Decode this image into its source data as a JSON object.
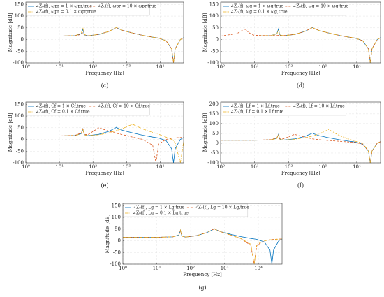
{
  "chart_data": [
    {
      "type": "line",
      "caption": "(c)",
      "xlabel": "Frequency [Hz]",
      "ylabel": "Magnitude [dB]",
      "xscale": "log",
      "grid": true,
      "x": [
        1,
        3,
        5,
        8,
        10,
        30,
        45,
        50,
        55,
        70,
        150,
        300,
        450,
        500,
        550,
        800,
        1500,
        3000,
        6000,
        7500,
        9000,
        15000,
        22000,
        25000,
        28000,
        40000,
        50000
      ],
      "xlim": [
        1,
        50000
      ],
      "xticks": [
        {
          "value": 1,
          "label": "10⁰"
        },
        {
          "value": 10,
          "label": "10¹"
        },
        {
          "value": 100,
          "label": "10²"
        },
        {
          "value": 1000,
          "label": "10³"
        },
        {
          "value": 10000,
          "label": "10⁴"
        }
      ],
      "ylim": [
        -100,
        160
      ],
      "yticks": [
        -100,
        -50,
        0,
        50,
        100,
        150
      ],
      "series": [
        {
          "name": "∠Z₀(f), ωpr = 1 × ωpr,true",
          "color": "#0072bd",
          "dash": "",
          "values": [
            15,
            15,
            15,
            15,
            15,
            17,
            25,
            45,
            20,
            16,
            22,
            35,
            48,
            52,
            48,
            38,
            28,
            18,
            10,
            8,
            6,
            -5,
            -40,
            -100,
            -40,
            0,
            8
          ]
        },
        {
          "name": "∠Z₀(f), ωpr = 10 × ωpr,true",
          "color": "#d95319",
          "dash": "3 2",
          "values": [
            15,
            15,
            15,
            15,
            15,
            17,
            22,
            30,
            20,
            16,
            22,
            35,
            48,
            52,
            48,
            38,
            28,
            18,
            10,
            8,
            6,
            -5,
            -40,
            -100,
            -40,
            0,
            8
          ]
        },
        {
          "name": "∠Z₀(f), ωpr = 0.1 × ωpr,true",
          "color": "#edb120",
          "dash": "4 1.5 1 1.5",
          "values": [
            15,
            15,
            15,
            15,
            15,
            17,
            28,
            50,
            22,
            16,
            22,
            35,
            48,
            52,
            48,
            38,
            28,
            18,
            10,
            8,
            6,
            -5,
            -40,
            -100,
            -40,
            0,
            8
          ]
        }
      ]
    },
    {
      "type": "line",
      "caption": "(d)",
      "xlabel": "Frequency [Hz]",
      "ylabel": "Magnitude [dB]",
      "xscale": "log",
      "grid": true,
      "x": [
        1,
        3,
        5,
        8,
        10,
        30,
        45,
        50,
        55,
        70,
        150,
        300,
        450,
        500,
        550,
        800,
        1500,
        3000,
        6000,
        7500,
        9000,
        15000,
        22000,
        25000,
        28000,
        40000,
        50000
      ],
      "xlim": [
        1,
        50000
      ],
      "xticks": [
        {
          "value": 1,
          "label": "10⁰"
        },
        {
          "value": 10,
          "label": "10¹"
        },
        {
          "value": 100,
          "label": "10²"
        },
        {
          "value": 1000,
          "label": "10³"
        },
        {
          "value": 10000,
          "label": "10⁴"
        }
      ],
      "ylim": [
        -100,
        160
      ],
      "yticks": [
        -100,
        -50,
        0,
        50,
        100,
        150
      ],
      "series": [
        {
          "name": "∠Z₀(f), ωg = 1 × ωg,true",
          "color": "#0072bd",
          "dash": "",
          "values": [
            15,
            15,
            15,
            15,
            15,
            17,
            25,
            45,
            20,
            16,
            22,
            35,
            48,
            52,
            48,
            38,
            28,
            18,
            10,
            8,
            6,
            -5,
            -40,
            -100,
            -40,
            0,
            8
          ]
        },
        {
          "name": "∠Z₀(f), ωg = 10 × ωg,true",
          "color": "#d95319",
          "dash": "3 2",
          "values": [
            15,
            25,
            45,
            22,
            18,
            17,
            17,
            18,
            17,
            17,
            22,
            35,
            48,
            52,
            48,
            38,
            28,
            18,
            10,
            8,
            6,
            -5,
            -40,
            -100,
            -40,
            0,
            8
          ]
        },
        {
          "name": "∠Z₀(f), ωg = 0.1 × ωg,true",
          "color": "#edb120",
          "dash": "4 1.5 1 1.5",
          "values": [
            15,
            15,
            15,
            15,
            15,
            17,
            24,
            40,
            20,
            16,
            22,
            35,
            48,
            52,
            48,
            38,
            28,
            18,
            10,
            8,
            6,
            -5,
            -40,
            -100,
            -40,
            0,
            8
          ]
        }
      ]
    },
    {
      "type": "line",
      "caption": "(e)",
      "xlabel": "Frequency [Hz]",
      "ylabel": "Magnitude [dB]",
      "xscale": "log",
      "grid": true,
      "x": [
        1,
        3,
        5,
        8,
        10,
        30,
        45,
        50,
        55,
        70,
        150,
        300,
        450,
        500,
        550,
        800,
        1500,
        3000,
        6000,
        7500,
        9000,
        15000,
        22000,
        25000,
        28000,
        40000,
        50000
      ],
      "xlim": [
        1,
        50000
      ],
      "xticks": [
        {
          "value": 1,
          "label": "10⁰"
        },
        {
          "value": 10,
          "label": "10¹"
        },
        {
          "value": 100,
          "label": "10²"
        },
        {
          "value": 1000,
          "label": "10³"
        },
        {
          "value": 10000,
          "label": "10⁴"
        }
      ],
      "ylim": [
        -100,
        160
      ],
      "yticks": [
        -100,
        -50,
        0,
        50,
        100,
        150
      ],
      "series": [
        {
          "name": "∠Z₀(f), Cf = 1 × Cf,true",
          "color": "#0072bd",
          "dash": "",
          "values": [
            15,
            15,
            15,
            15,
            15,
            17,
            25,
            45,
            20,
            16,
            22,
            35,
            48,
            52,
            48,
            38,
            28,
            18,
            10,
            8,
            6,
            -5,
            -40,
            -100,
            -40,
            0,
            8
          ]
        },
        {
          "name": "∠Z₀(f), Cf = 10 × Cf,true",
          "color": "#d95319",
          "dash": "3 2",
          "values": [
            15,
            15,
            15,
            15,
            15,
            18,
            28,
            45,
            22,
            20,
            50,
            35,
            28,
            26,
            25,
            20,
            10,
            0,
            -25,
            -100,
            -20,
            0,
            5,
            6,
            7,
            8,
            9
          ]
        },
        {
          "name": "∠Z₀(f), Cf = 0.1 × Cf,true",
          "color": "#edb120",
          "dash": "4 1.5 1 1.5",
          "values": [
            15,
            15,
            15,
            15,
            15,
            17,
            24,
            44,
            20,
            16,
            20,
            28,
            36,
            38,
            40,
            48,
            65,
            45,
            30,
            26,
            22,
            10,
            0,
            -5,
            -15,
            -100,
            -10
          ]
        }
      ]
    },
    {
      "type": "line",
      "caption": "(f)",
      "xlabel": "Frequency [Hz]",
      "ylabel": "Magnitude [dB]",
      "xscale": "log",
      "grid": true,
      "x": [
        1,
        3,
        5,
        8,
        10,
        30,
        45,
        50,
        55,
        70,
        150,
        300,
        450,
        500,
        550,
        800,
        1500,
        3000,
        6000,
        7500,
        9000,
        15000,
        22000,
        25000,
        28000,
        40000,
        50000
      ],
      "xlim": [
        1,
        50000
      ],
      "xticks": [
        {
          "value": 1,
          "label": "10⁰"
        },
        {
          "value": 10,
          "label": "10¹"
        },
        {
          "value": 100,
          "label": "10²"
        },
        {
          "value": 1000,
          "label": "10³"
        },
        {
          "value": 10000,
          "label": "10⁴"
        }
      ],
      "ylim": [
        -100,
        210
      ],
      "yticks": [
        -100,
        -50,
        0,
        50,
        100,
        150,
        200
      ],
      "series": [
        {
          "name": "∠Z₀(f), Lf = 1 × Lf,true",
          "color": "#0072bd",
          "dash": "",
          "values": [
            15,
            15,
            15,
            15,
            15,
            17,
            25,
            45,
            20,
            16,
            22,
            35,
            48,
            52,
            48,
            38,
            28,
            18,
            10,
            8,
            6,
            -5,
            -40,
            -100,
            -40,
            0,
            8
          ]
        },
        {
          "name": "∠Z₀(f), Lf = 10 × Lf,true",
          "color": "#d95319",
          "dash": "3 2",
          "values": [
            15,
            15,
            15,
            15,
            15,
            18,
            28,
            42,
            22,
            22,
            45,
            30,
            24,
            22,
            21,
            18,
            14,
            10,
            6,
            5,
            4,
            -5,
            -40,
            -100,
            -40,
            0,
            8
          ]
        },
        {
          "name": "∠Z₀(f), Lf = 0.1 × Lf,true",
          "color": "#edb120",
          "dash": "4 1.5 1 1.5",
          "values": [
            15,
            15,
            15,
            15,
            15,
            17,
            24,
            44,
            20,
            16,
            20,
            28,
            34,
            36,
            38,
            48,
            70,
            40,
            20,
            15,
            10,
            0,
            -40,
            -100,
            -40,
            0,
            8
          ]
        }
      ]
    },
    {
      "type": "line",
      "caption": "(g)",
      "xlabel": "Frequency [Hz]",
      "ylabel": "Magnitude [dB]",
      "xscale": "log",
      "grid": true,
      "x": [
        1,
        3,
        5,
        8,
        10,
        30,
        45,
        50,
        55,
        70,
        150,
        300,
        450,
        500,
        550,
        800,
        1500,
        3000,
        6000,
        7500,
        9000,
        15000,
        22000,
        25000,
        28000,
        40000,
        50000
      ],
      "xlim": [
        1,
        50000
      ],
      "xticks": [
        {
          "value": 1,
          "label": "10⁰"
        },
        {
          "value": 10,
          "label": "10¹"
        },
        {
          "value": 100,
          "label": "10²"
        },
        {
          "value": 1000,
          "label": "10³"
        },
        {
          "value": 10000,
          "label": "10⁴"
        }
      ],
      "ylim": [
        -100,
        160
      ],
      "yticks": [
        -100,
        -50,
        0,
        50,
        100,
        150
      ],
      "series": [
        {
          "name": "∠Z₀(f), Lg = 1 × Lg,true",
          "color": "#0072bd",
          "dash": "",
          "values": [
            15,
            15,
            15,
            15,
            15,
            17,
            25,
            45,
            20,
            16,
            22,
            35,
            48,
            52,
            48,
            38,
            28,
            18,
            10,
            8,
            6,
            -5,
            -40,
            -100,
            -40,
            0,
            8
          ]
        },
        {
          "name": "∠Z₀(f), Lg = 10 × Lg,true",
          "color": "#d95319",
          "dash": "3 2",
          "values": [
            15,
            15,
            15,
            15,
            15,
            17,
            25,
            44,
            20,
            16,
            22,
            35,
            48,
            52,
            48,
            38,
            25,
            10,
            -20,
            -100,
            -20,
            0,
            4,
            5,
            6,
            7,
            8
          ]
        },
        {
          "name": "∠Z₀(f), Lg = 0.1 × Lg,true",
          "color": "#edb120",
          "dash": "4 1.5 1 1.5",
          "values": [
            15,
            15,
            15,
            15,
            15,
            17,
            25,
            46,
            20,
            16,
            22,
            35,
            48,
            52,
            48,
            38,
            25,
            10,
            -15,
            -100,
            -15,
            0,
            4,
            5,
            6,
            7,
            8
          ]
        }
      ]
    }
  ]
}
